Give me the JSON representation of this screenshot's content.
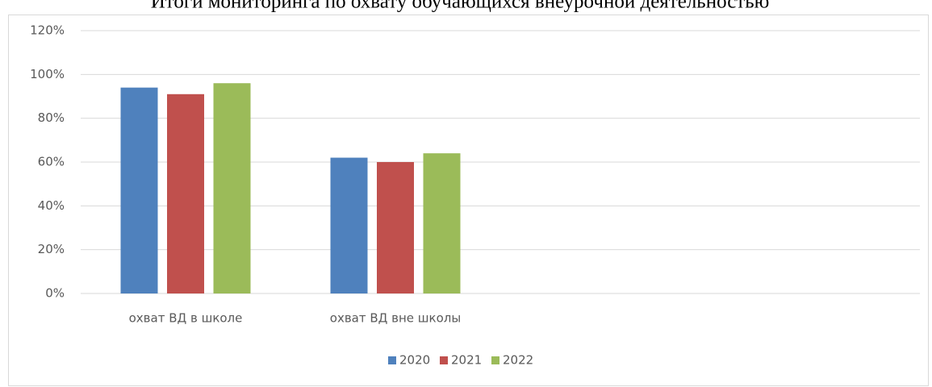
{
  "chart_data": {
    "type": "bar",
    "title": "Итоги мониторинга по охвату обучающихся внеурочной деятельностью",
    "categories": [
      "охват ВД в школе",
      "охват ВД вне школы",
      null,
      null
    ],
    "series": [
      {
        "name": "2020",
        "color": "#4f81bd",
        "values": [
          94,
          62,
          null,
          null
        ]
      },
      {
        "name": "2021",
        "color": "#c0504d",
        "values": [
          91,
          60,
          null,
          null
        ]
      },
      {
        "name": "2022",
        "color": "#9bbb59",
        "values": [
          96,
          64,
          null,
          null
        ]
      }
    ],
    "ylim": [
      0,
      120
    ],
    "yticks": [
      {
        "value": 0,
        "label": "0%"
      },
      {
        "value": 20,
        "label": "20%"
      },
      {
        "value": 40,
        "label": "40%"
      },
      {
        "value": 60,
        "label": "60%"
      },
      {
        "value": 80,
        "label": "80%"
      },
      {
        "value": 100,
        "label": "100%"
      },
      {
        "value": 120,
        "label": "120%"
      }
    ],
    "grid": true,
    "legend": "bottom"
  }
}
